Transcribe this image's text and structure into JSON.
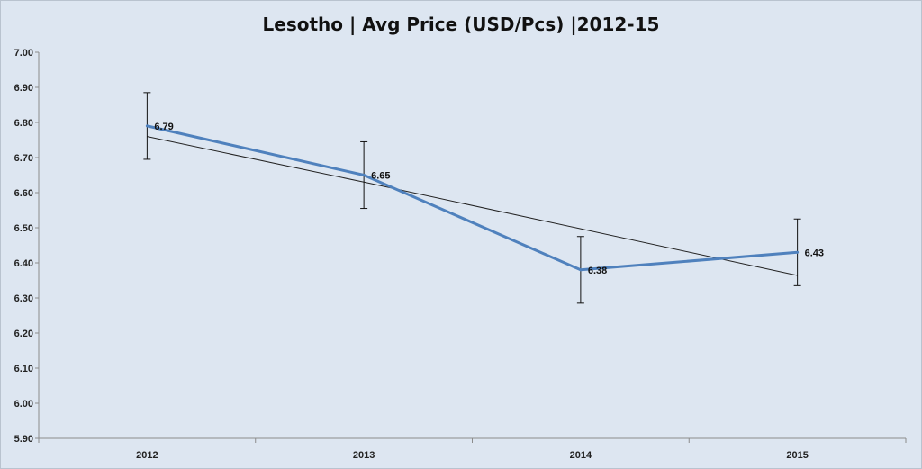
{
  "chart_data": {
    "type": "line",
    "title": "Lesotho | Avg Price (USD/Pcs) |2012-15",
    "categories": [
      "2012",
      "2013",
      "2014",
      "2015"
    ],
    "series": [
      {
        "values": [
          6.79,
          6.65,
          6.38,
          6.43
        ],
        "data_labels": [
          "6.79",
          "6.65",
          "6.38",
          "6.43"
        ],
        "error_bar": 0.095,
        "color": "#4f81bd"
      }
    ],
    "trendline": {
      "type": "linear",
      "values": [
        6.76,
        6.63,
        6.497,
        6.364
      ],
      "color": "#222222"
    },
    "ylim": [
      5.9,
      7.0
    ],
    "yticks": [
      "7.00",
      "6.90",
      "6.80",
      "6.70",
      "6.60",
      "6.50",
      "6.40",
      "6.30",
      "6.20",
      "6.10",
      "6.00",
      "5.90"
    ],
    "xlabel": "",
    "ylabel": "",
    "grid": false,
    "legend": "none"
  }
}
